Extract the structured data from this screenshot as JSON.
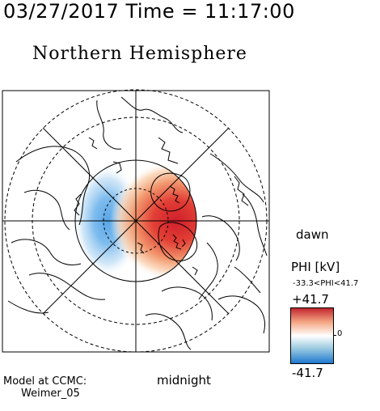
{
  "header": {
    "datetime": "03/27/2017 Time = 11:17:00"
  },
  "title": "Northern Hemisphere",
  "labels": {
    "dawn": "dawn",
    "midnight": "midnight"
  },
  "colorbar": {
    "title": "PHI [kV]",
    "range_text": "-33.3<PHI<41.7",
    "max_label": "+41.7",
    "zero_label": "0",
    "min_label": "-41.7",
    "colors": {
      "positive": "#d62728",
      "neutral": "#ffffff",
      "negative": "#1f78d0"
    }
  },
  "model": {
    "line1": "Model at CCMC:",
    "line2": "Weimer_05"
  }
}
